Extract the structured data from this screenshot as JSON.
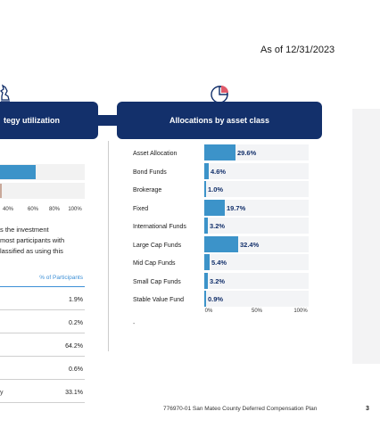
{
  "as_of": "As of 12/31/2023",
  "left_panel": {
    "title": "tegy utilization",
    "bars": [
      {
        "value": 0.42,
        "color": "#3c93c9"
      },
      {
        "value": 0.02,
        "color": "#c9a99a"
      }
    ],
    "axis_ticks": [
      "40%",
      "60%",
      "80%",
      "100%"
    ],
    "paragraph": [
      "s the investment",
      "most participants with",
      "lassified as using this"
    ],
    "table_header": "% of Participants",
    "rows": [
      {
        "label": "",
        "value": "1.9%"
      },
      {
        "label": "",
        "value": "0.2%"
      },
      {
        "label": "",
        "value": "64.2%"
      },
      {
        "label": "",
        "value": "0.6%"
      },
      {
        "label": "y",
        "value": "33.1%"
      }
    ]
  },
  "allocations": {
    "title": "Allocations by asset class",
    "x_ticks": [
      "0%",
      "50%",
      "100%"
    ],
    "note": "-"
  },
  "chart_data": {
    "type": "bar",
    "orientation": "horizontal",
    "title": "Allocations by asset class",
    "categories": [
      "Asset Allocation",
      "Bond Funds",
      "Brokerage",
      "Fixed",
      "International Funds",
      "Large Cap Funds",
      "Mid Cap Funds",
      "Small Cap Funds",
      "Stable Value Fund"
    ],
    "values": [
      29.6,
      4.6,
      1.0,
      19.7,
      3.2,
      32.4,
      5.4,
      3.2,
      0.9
    ],
    "value_labels": [
      "29.6%",
      "4.6%",
      "1.0%",
      "19.7%",
      "3.2%",
      "32.4%",
      "5.4%",
      "3.2%",
      "0.9%"
    ],
    "xlim": [
      0,
      100
    ],
    "bar_color": "#3c93c9",
    "grid": false
  },
  "colors": {
    "header": "#13306b",
    "bar": "#3c93c9",
    "accent_text": "#3c8fd6"
  },
  "footer": "776970-01 San Mateo County Deferred Compensation Plan",
  "page_number": "3"
}
